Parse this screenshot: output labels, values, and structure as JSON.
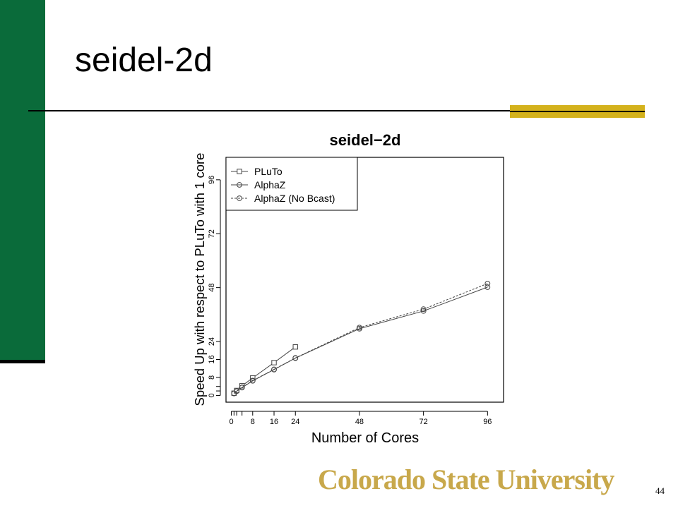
{
  "slide": {
    "title": "seidel-2d",
    "page_number": "44",
    "logo_text": "Colorado State University",
    "colors": {
      "green_bar": "#0a6b3a",
      "gold_bar": "#d4b21c"
    }
  },
  "chart_data": {
    "type": "line",
    "title": "seidel−2d",
    "xlabel": "Number of Cores",
    "ylabel": "Speed Up with respect to PLuTo with 1 core",
    "xlim": [
      -2,
      102
    ],
    "ylim": [
      -3,
      106
    ],
    "x_ticks": [
      0,
      8,
      16,
      24,
      48,
      72,
      96
    ],
    "y_ticks": [
      0,
      8,
      16,
      24,
      48,
      72,
      96
    ],
    "grid": false,
    "legend_position": "top-left",
    "series": [
      {
        "name": "PLuTo",
        "marker": "square",
        "dash": "solid",
        "x": [
          1,
          2,
          4,
          8,
          16,
          24
        ],
        "y": [
          1,
          2.2,
          4.3,
          7.8,
          14.6,
          21.6
        ]
      },
      {
        "name": "AlphaZ",
        "marker": "circle",
        "dash": "solid",
        "x": [
          1,
          2,
          4,
          8,
          16,
          24,
          48,
          72,
          96
        ],
        "y": [
          0.9,
          1.9,
          3.5,
          6.5,
          11.5,
          16.6,
          29.7,
          37.6,
          48.2
        ]
      },
      {
        "name": "AlphaZ (No Bcast)",
        "marker": "circle",
        "dash": "dashed",
        "x": [
          1,
          2,
          4,
          8,
          16,
          24,
          48,
          72,
          96
        ],
        "y": [
          0.9,
          1.9,
          3.6,
          6.6,
          11.6,
          16.7,
          30.2,
          38.4,
          49.8
        ]
      }
    ]
  }
}
